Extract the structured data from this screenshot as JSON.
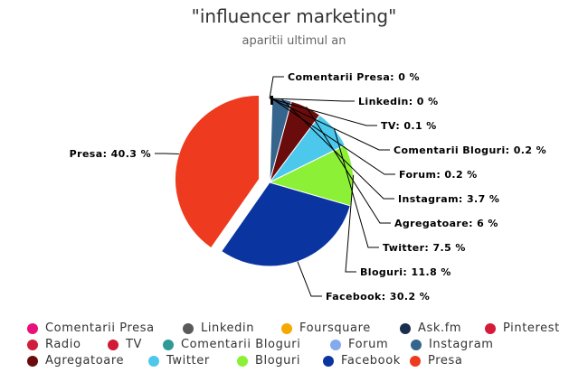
{
  "chart_data": {
    "type": "pie",
    "title": "\"influencer marketing\"",
    "subtitle": "aparitii ultimul an",
    "slices": [
      {
        "name": "Comentarii Presa",
        "value": 0,
        "label": "Comentarii Presa: 0 %",
        "color": "#e8107a"
      },
      {
        "name": "Linkedin",
        "value": 0,
        "label": "Linkedin: 0 %",
        "color": "#5a5a5a"
      },
      {
        "name": "Foursquare",
        "value": 0,
        "color": "#f5a800"
      },
      {
        "name": "Ask.fm",
        "value": 0,
        "color": "#1a2e4d"
      },
      {
        "name": "Pinterest",
        "value": 0,
        "color": "#d41c3a"
      },
      {
        "name": "Radio",
        "value": 0,
        "color": "#cf1f3c"
      },
      {
        "name": "TV",
        "value": 0.1,
        "label": "TV: 0.1 %",
        "color": "#d11a35"
      },
      {
        "name": "Comentarii Bloguri",
        "value": 0.2,
        "label": "Comentarii Bloguri: 0.2 %",
        "color": "#2f9a95"
      },
      {
        "name": "Forum",
        "value": 0.2,
        "label": "Forum: 0.2 %",
        "color": "#84a9ef"
      },
      {
        "name": "Instagram",
        "value": 3.7,
        "label": "Instagram: 3.7 %",
        "color": "#35648c"
      },
      {
        "name": "Agregatoare",
        "value": 6,
        "label": "Agregatoare: 6 %",
        "color": "#6b0c0c"
      },
      {
        "name": "Twitter",
        "value": 7.5,
        "label": "Twitter: 7.5 %",
        "color": "#4cc8ec"
      },
      {
        "name": "Bloguri",
        "value": 11.8,
        "label": "Bloguri: 11.8 %",
        "color": "#8cf036"
      },
      {
        "name": "Facebook",
        "value": 30.2,
        "label": "Facebook: 30.2 %",
        "color": "#0a35a0"
      },
      {
        "name": "Presa",
        "value": 40.3,
        "label": "Presa: 40.3 %",
        "color": "#ee3a1e"
      }
    ],
    "legend_position": "bottom"
  }
}
